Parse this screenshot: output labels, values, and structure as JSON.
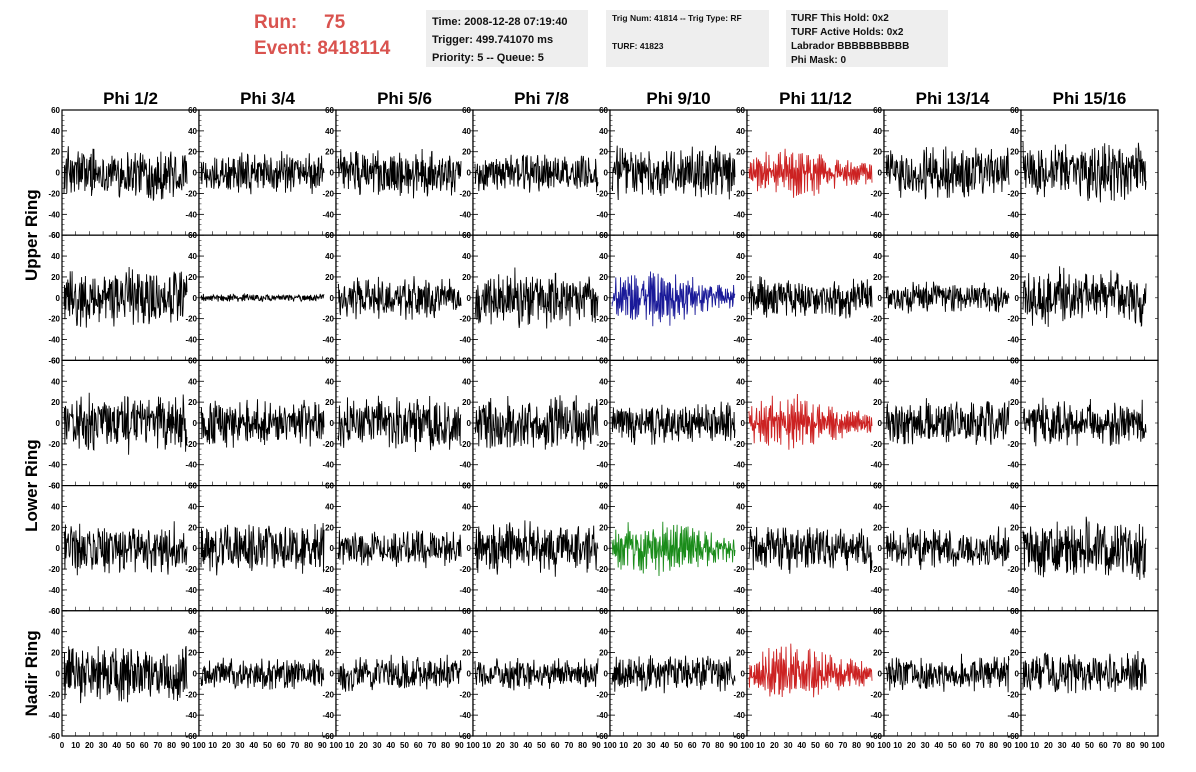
{
  "header": {
    "run_label": "Run:",
    "run_value": "75",
    "event_label": "Event:",
    "event_value": "8418114",
    "time": "Time: 2008-12-28 07:19:40",
    "trigger": "Trigger: 499.741070 ms",
    "priority": "Priority: 5 -- Queue: 5",
    "trig_num": "Trig Num: 41814 -- Trig Type: RF",
    "turf": "TURF: 41823",
    "turf_this_hold": "TURF This Hold: 0x2",
    "turf_active_holds": "TURF Active Holds: 0x2",
    "labrador": "Labrador BBBBBBBBBB",
    "phi_mask": "Phi Mask: 0"
  },
  "chart_data": {
    "type": "line",
    "columns": [
      "Phi 1/2",
      "Phi 3/4",
      "Phi 5/6",
      "Phi 7/8",
      "Phi 9/10",
      "Phi 11/12",
      "Phi 13/14",
      "Phi 15/16"
    ],
    "row_groups": [
      {
        "label": "Upper Ring",
        "rows": [
          0,
          1
        ]
      },
      {
        "label": "Lower Ring",
        "rows": [
          2,
          3
        ]
      },
      {
        "label": "Nadir Ring",
        "rows": [
          4
        ]
      }
    ],
    "ylim": [
      -60,
      60
    ],
    "xlim": [
      0,
      100
    ],
    "y_ticks": [
      -60,
      -40,
      -20,
      0,
      20,
      40,
      60
    ],
    "x_ticks": [
      0,
      10,
      20,
      30,
      40,
      50,
      60,
      70,
      80,
      90,
      100
    ],
    "colors": {
      "default": "#000000",
      "red": "#cc2222",
      "blue": "#1a1a99",
      "green": "#1a8c1a"
    },
    "panels": [
      {
        "row": 0,
        "col": 0,
        "color": "default",
        "amplitude": 20
      },
      {
        "row": 0,
        "col": 1,
        "color": "default",
        "amplitude": 16
      },
      {
        "row": 0,
        "col": 2,
        "color": "default",
        "amplitude": 18
      },
      {
        "row": 0,
        "col": 3,
        "color": "default",
        "amplitude": 16
      },
      {
        "row": 0,
        "col": 4,
        "color": "default",
        "amplitude": 20
      },
      {
        "row": 0,
        "col": 5,
        "color": "red",
        "amplitude": 18
      },
      {
        "row": 0,
        "col": 6,
        "color": "default",
        "amplitude": 20
      },
      {
        "row": 0,
        "col": 7,
        "color": "default",
        "amplitude": 22
      },
      {
        "row": 1,
        "col": 0,
        "color": "default",
        "amplitude": 24
      },
      {
        "row": 1,
        "col": 1,
        "color": "default",
        "amplitude": 3
      },
      {
        "row": 1,
        "col": 2,
        "color": "default",
        "amplitude": 16
      },
      {
        "row": 1,
        "col": 3,
        "color": "default",
        "amplitude": 22
      },
      {
        "row": 1,
        "col": 4,
        "color": "blue",
        "amplitude": 20
      },
      {
        "row": 1,
        "col": 5,
        "color": "default",
        "amplitude": 16
      },
      {
        "row": 1,
        "col": 6,
        "color": "default",
        "amplitude": 12
      },
      {
        "row": 1,
        "col": 7,
        "color": "default",
        "amplitude": 22
      },
      {
        "row": 2,
        "col": 0,
        "color": "default",
        "amplitude": 22
      },
      {
        "row": 2,
        "col": 1,
        "color": "default",
        "amplitude": 18
      },
      {
        "row": 2,
        "col": 2,
        "color": "default",
        "amplitude": 20
      },
      {
        "row": 2,
        "col": 3,
        "color": "default",
        "amplitude": 20
      },
      {
        "row": 2,
        "col": 4,
        "color": "default",
        "amplitude": 16
      },
      {
        "row": 2,
        "col": 5,
        "color": "red",
        "amplitude": 20
      },
      {
        "row": 2,
        "col": 6,
        "color": "default",
        "amplitude": 18
      },
      {
        "row": 2,
        "col": 7,
        "color": "default",
        "amplitude": 18
      },
      {
        "row": 3,
        "col": 0,
        "color": "default",
        "amplitude": 20
      },
      {
        "row": 3,
        "col": 1,
        "color": "default",
        "amplitude": 20
      },
      {
        "row": 3,
        "col": 2,
        "color": "default",
        "amplitude": 14
      },
      {
        "row": 3,
        "col": 3,
        "color": "default",
        "amplitude": 20
      },
      {
        "row": 3,
        "col": 4,
        "color": "green",
        "amplitude": 22
      },
      {
        "row": 3,
        "col": 5,
        "color": "default",
        "amplitude": 18
      },
      {
        "row": 3,
        "col": 6,
        "color": "default",
        "amplitude": 16
      },
      {
        "row": 3,
        "col": 7,
        "color": "default",
        "amplitude": 22
      },
      {
        "row": 4,
        "col": 0,
        "color": "default",
        "amplitude": 22
      },
      {
        "row": 4,
        "col": 1,
        "color": "default",
        "amplitude": 12
      },
      {
        "row": 4,
        "col": 2,
        "color": "default",
        "amplitude": 14
      },
      {
        "row": 4,
        "col": 3,
        "color": "default",
        "amplitude": 12
      },
      {
        "row": 4,
        "col": 4,
        "color": "default",
        "amplitude": 14
      },
      {
        "row": 4,
        "col": 5,
        "color": "red",
        "amplitude": 20
      },
      {
        "row": 4,
        "col": 6,
        "color": "default",
        "amplitude": 14
      },
      {
        "row": 4,
        "col": 7,
        "color": "default",
        "amplitude": 16
      }
    ]
  }
}
